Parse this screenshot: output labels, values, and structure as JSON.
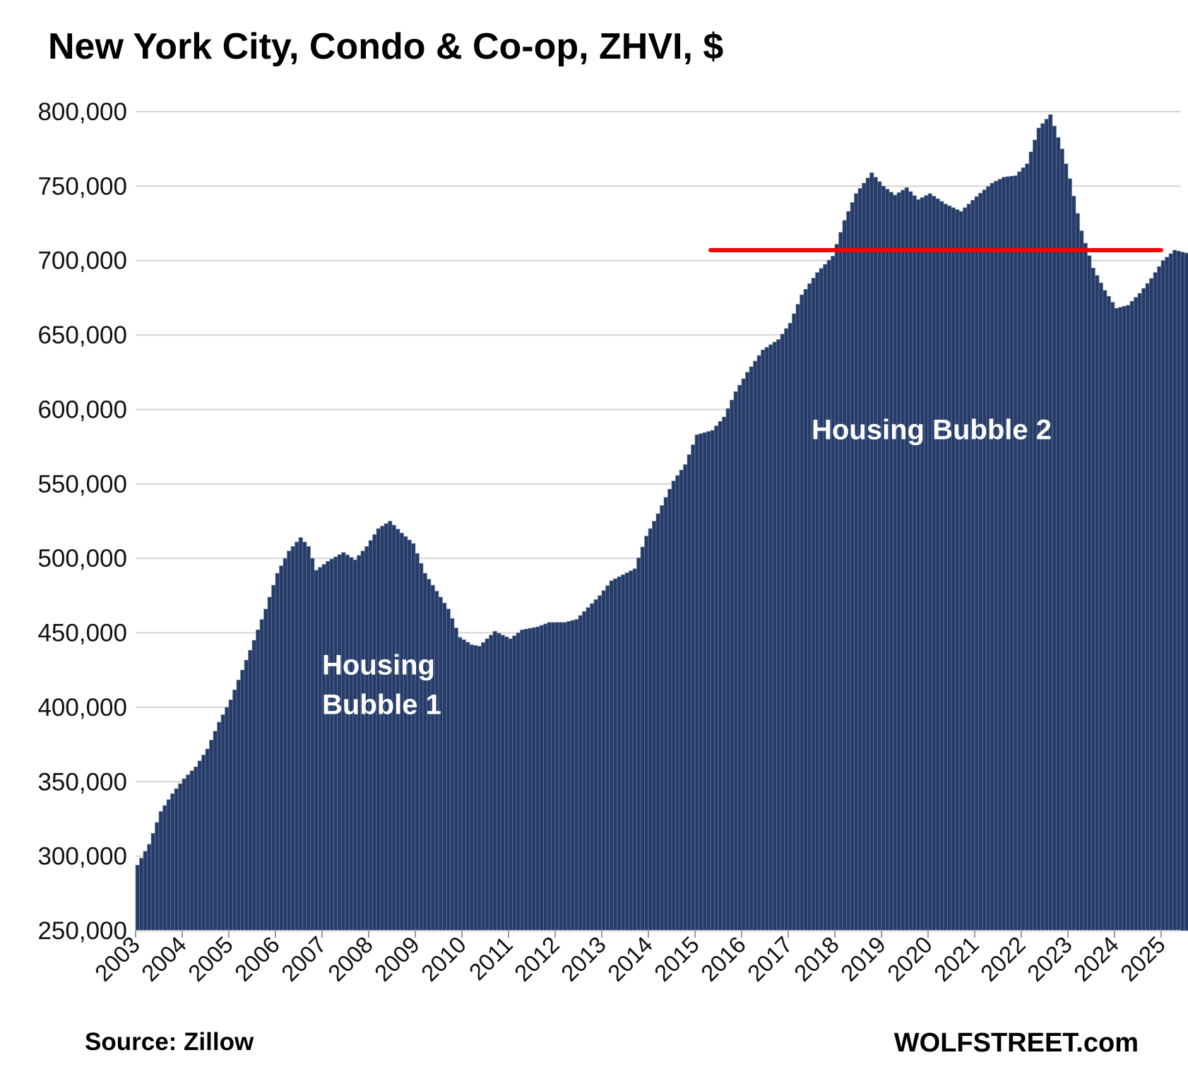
{
  "chart_data": {
    "type": "bar",
    "title": "New York City, Condo & Co-op, ZHVI, $",
    "xlabel": "",
    "ylabel": "",
    "ylim": [
      250000,
      800000
    ],
    "yticks": [
      "250,000",
      "300,000",
      "350,000",
      "400,000",
      "450,000",
      "500,000",
      "550,000",
      "600,000",
      "650,000",
      "700,000",
      "750,000",
      "800,000"
    ],
    "yticks_values": [
      250000,
      300000,
      350000,
      400000,
      450000,
      500000,
      550000,
      600000,
      650000,
      700000,
      750000,
      800000
    ],
    "xticks": [
      "2003",
      "2004",
      "2005",
      "2006",
      "2007",
      "2008",
      "2009",
      "2010",
      "2011",
      "2012",
      "2013",
      "2014",
      "2015",
      "2016",
      "2017",
      "2018",
      "2019",
      "2020",
      "2021",
      "2022",
      "2023",
      "2024",
      "2025"
    ],
    "x_start": "2003-01",
    "frequency": "monthly",
    "anchors": [
      [
        "2003-01",
        294000
      ],
      [
        "2003-04",
        308000
      ],
      [
        "2003-07",
        330000
      ],
      [
        "2003-10",
        342000
      ],
      [
        "2004-01",
        352000
      ],
      [
        "2004-04",
        360000
      ],
      [
        "2004-07",
        372000
      ],
      [
        "2004-10",
        390000
      ],
      [
        "2005-01",
        405000
      ],
      [
        "2005-04",
        425000
      ],
      [
        "2005-07",
        445000
      ],
      [
        "2005-10",
        466000
      ],
      [
        "2006-01",
        490000
      ],
      [
        "2006-04",
        505000
      ],
      [
        "2006-07",
        514000
      ],
      [
        "2006-09",
        508000
      ],
      [
        "2006-11",
        492000
      ],
      [
        "2007-02",
        498000
      ],
      [
        "2007-06",
        504000
      ],
      [
        "2007-09",
        499000
      ],
      [
        "2007-12",
        508000
      ],
      [
        "2008-03",
        520000
      ],
      [
        "2008-06",
        525000
      ],
      [
        "2008-09",
        517000
      ],
      [
        "2008-12",
        510000
      ],
      [
        "2009-03",
        490000
      ],
      [
        "2009-06",
        478000
      ],
      [
        "2009-09",
        466000
      ],
      [
        "2009-12",
        447000
      ],
      [
        "2010-03",
        442000
      ],
      [
        "2010-05",
        441000
      ],
      [
        "2010-09",
        451000
      ],
      [
        "2011-01",
        446000
      ],
      [
        "2011-04",
        452000
      ],
      [
        "2011-08",
        454000
      ],
      [
        "2011-11",
        457000
      ],
      [
        "2012-03",
        457000
      ],
      [
        "2012-06",
        459000
      ],
      [
        "2012-09",
        467000
      ],
      [
        "2012-12",
        475000
      ],
      [
        "2013-03",
        485000
      ],
      [
        "2013-06",
        489000
      ],
      [
        "2013-09",
        493000
      ],
      [
        "2013-12",
        515000
      ],
      [
        "2014-03",
        530000
      ],
      [
        "2014-07",
        552000
      ],
      [
        "2014-10",
        563000
      ],
      [
        "2015-01",
        583000
      ],
      [
        "2015-05",
        586000
      ],
      [
        "2015-08",
        595000
      ],
      [
        "2015-11",
        612000
      ],
      [
        "2016-02",
        625000
      ],
      [
        "2016-06",
        640000
      ],
      [
        "2016-10",
        647000
      ],
      [
        "2017-01",
        658000
      ],
      [
        "2017-04",
        677000
      ],
      [
        "2017-08",
        692000
      ],
      [
        "2017-12",
        703000
      ],
      [
        "2018-03",
        727000
      ],
      [
        "2018-06",
        745000
      ],
      [
        "2018-10",
        759000
      ],
      [
        "2019-01",
        750000
      ],
      [
        "2019-04",
        744000
      ],
      [
        "2019-07",
        749000
      ],
      [
        "2019-10",
        741000
      ],
      [
        "2020-01",
        745000
      ],
      [
        "2020-05",
        738000
      ],
      [
        "2020-09",
        733000
      ],
      [
        "2021-01",
        743000
      ],
      [
        "2021-05",
        752000
      ],
      [
        "2021-08",
        756000
      ],
      [
        "2021-11",
        757000
      ],
      [
        "2022-02",
        765000
      ],
      [
        "2022-05",
        789000
      ],
      [
        "2022-08",
        798000
      ],
      [
        "2022-11",
        775000
      ],
      [
        "2023-01",
        755000
      ],
      [
        "2023-04",
        720000
      ],
      [
        "2023-07",
        695000
      ],
      [
        "2023-10",
        680000
      ],
      [
        "2024-01",
        668000
      ],
      [
        "2024-04",
        670000
      ],
      [
        "2024-07",
        678000
      ],
      [
        "2024-10",
        688000
      ],
      [
        "2025-01",
        700000
      ],
      [
        "2025-04",
        707000
      ],
      [
        "2025-07",
        705000
      ]
    ],
    "reference_line": {
      "from": "2015-05",
      "to": "2025-01",
      "value": 707000,
      "color": "#ff0000"
    },
    "annotations": [
      {
        "lines": [
          "Housing",
          "Bubble 1"
        ],
        "at": "2007-01",
        "value": 422000
      },
      {
        "lines": [
          "Housing Bubble 2"
        ],
        "at": "2017-07",
        "value": 580000
      }
    ],
    "bar_color": "#263c66",
    "grid": true,
    "legend": "none"
  },
  "footer": {
    "source": "Source: Zillow",
    "brand": "WOLFSTREET.com"
  }
}
